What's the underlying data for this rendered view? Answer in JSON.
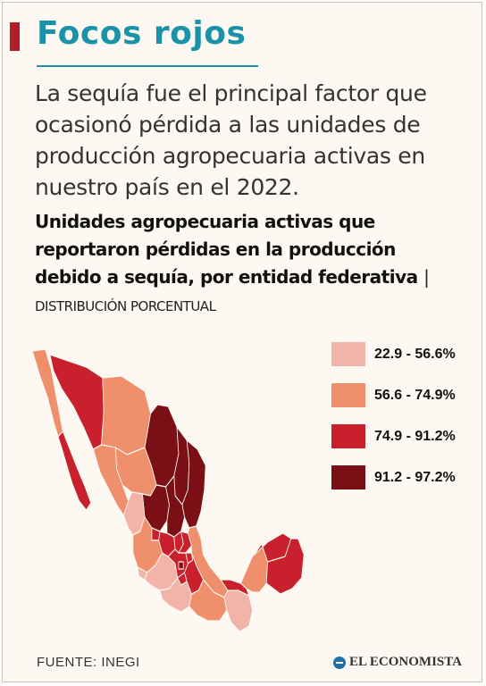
{
  "header": {
    "title": "Focos rojos",
    "subtitle": "La sequía fue el principal factor que ocasionó pérdida a las unidades de producción agropecuaria activas en nuestro país en el 2022."
  },
  "chart": {
    "title": "Unidades agropecuaria activas que reportaron pérdidas en la producción debido a sequía, por entidad federativa",
    "separator": "|",
    "subtitle": "DISTRIBUCIÓN PORCENTUAL"
  },
  "legend": [
    {
      "label": "22.9 - 56.6%",
      "color": "#f2b3a8"
    },
    {
      "label": "56.6 - 74.9%",
      "color": "#ef8f6b"
    },
    {
      "label": "74.9 - 91.2%",
      "color": "#c8202c"
    },
    {
      "label": "91.2 - 97.2%",
      "color": "#7a0f15"
    }
  ],
  "regions": [
    {
      "name": "baja-california",
      "class": 1
    },
    {
      "name": "baja-california-sur",
      "class": 2
    },
    {
      "name": "sonora",
      "class": 2
    },
    {
      "name": "chihuahua",
      "class": 1
    },
    {
      "name": "coahuila",
      "class": 3
    },
    {
      "name": "nuevo-leon",
      "class": 3
    },
    {
      "name": "tamaulipas",
      "class": 3
    },
    {
      "name": "durango",
      "class": 1
    },
    {
      "name": "sinaloa",
      "class": 1
    },
    {
      "name": "zacatecas",
      "class": 3
    },
    {
      "name": "san-luis-potosi",
      "class": 3
    },
    {
      "name": "nayarit",
      "class": 0
    },
    {
      "name": "aguascalientes",
      "class": 2
    },
    {
      "name": "jalisco",
      "class": 1
    },
    {
      "name": "guanajuato",
      "class": 2
    },
    {
      "name": "queretaro",
      "class": 2
    },
    {
      "name": "hidalgo",
      "class": 2
    },
    {
      "name": "veracruz",
      "class": 1
    },
    {
      "name": "colima",
      "class": 0
    },
    {
      "name": "michoacan",
      "class": 0
    },
    {
      "name": "estado-de-mexico",
      "class": 2
    },
    {
      "name": "ciudad-de-mexico",
      "class": 3
    },
    {
      "name": "morelos",
      "class": 2
    },
    {
      "name": "tlaxcala",
      "class": 2
    },
    {
      "name": "puebla",
      "class": 2
    },
    {
      "name": "guerrero",
      "class": 0
    },
    {
      "name": "oaxaca",
      "class": 1
    },
    {
      "name": "chiapas",
      "class": 0
    },
    {
      "name": "tabasco",
      "class": 2
    },
    {
      "name": "campeche",
      "class": 1
    },
    {
      "name": "yucatan",
      "class": 2
    },
    {
      "name": "quintana-roo",
      "class": 2
    }
  ],
  "footer": {
    "source": "FUENTE: INEGI",
    "brand": "EL ECONOMISTA",
    "brand_color": "#1f6fa8"
  }
}
